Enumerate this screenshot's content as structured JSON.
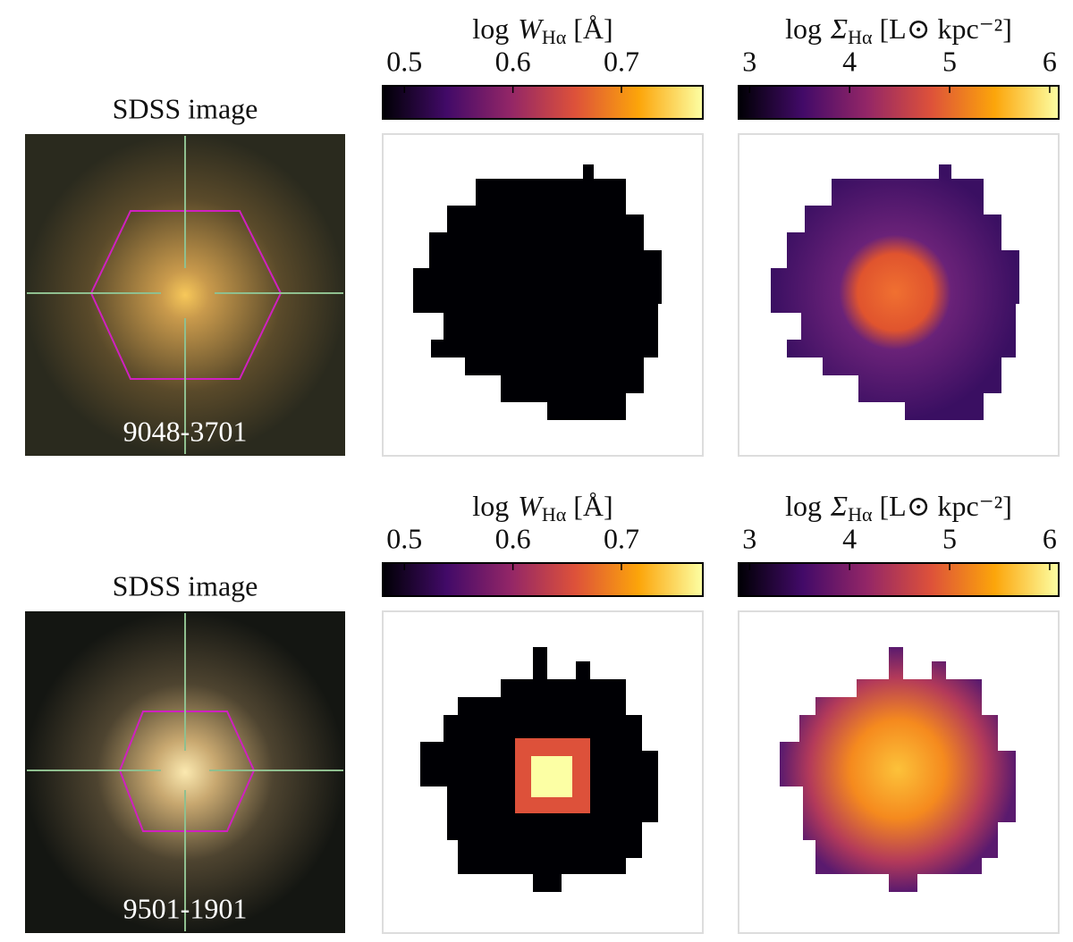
{
  "rows": [
    {
      "sdss": {
        "title": "SDSS image",
        "id": "9048-3701"
      },
      "colorbars": [
        {
          "label": {
            "prefix": "log",
            "symbol": "W",
            "subscript": "Hα",
            "unit": "[Å]"
          },
          "lim": [
            0.48,
            0.775
          ],
          "ticks": [
            0.5,
            0.6,
            0.7
          ]
        },
        {
          "label": {
            "prefix": "log",
            "symbol": "Σ",
            "subscript": "Hα",
            "unit": "[L⊙ kpc⁻²]"
          },
          "lim": [
            2.89,
            6.09
          ],
          "ticks": [
            3,
            4,
            5,
            6
          ]
        }
      ]
    },
    {
      "sdss": {
        "title": "SDSS image",
        "id": "9501-1901"
      },
      "colorbars": [
        {
          "label": {
            "prefix": "log",
            "symbol": "W",
            "subscript": "Hα",
            "unit": "[Å]"
          },
          "lim": [
            0.48,
            0.775
          ],
          "ticks": [
            0.5,
            0.6,
            0.7
          ]
        },
        {
          "label": {
            "prefix": "log",
            "symbol": "Σ",
            "subscript": "Hα",
            "unit": "[L⊙ kpc⁻²]"
          },
          "lim": [
            2.89,
            6.09
          ],
          "ticks": [
            3,
            4,
            5,
            6
          ]
        }
      ]
    }
  ]
}
